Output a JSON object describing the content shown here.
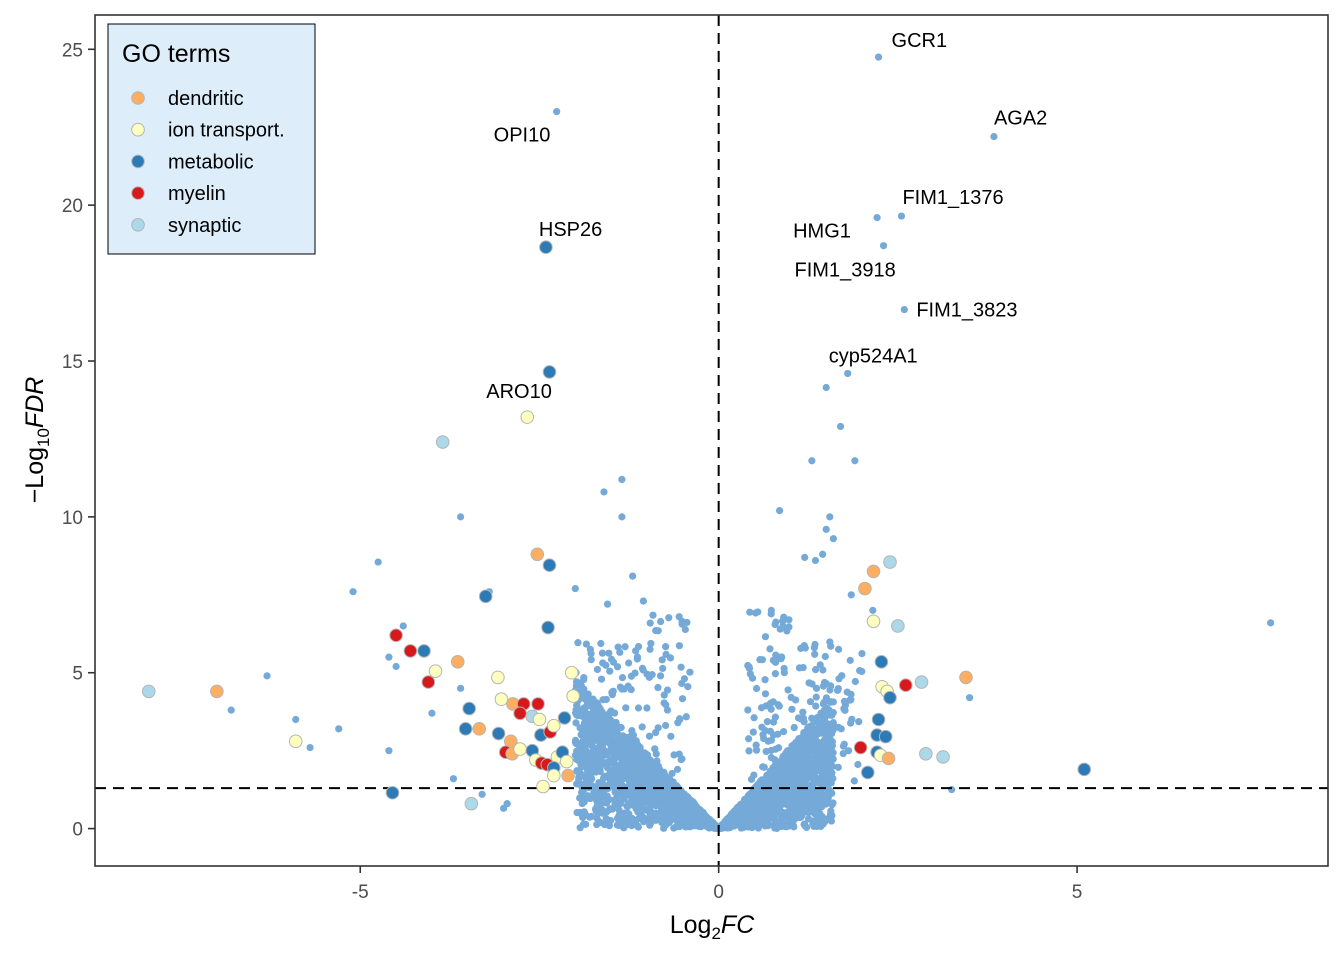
{
  "chart_data": {
    "type": "scatter",
    "subtype": "volcano",
    "title": "",
    "xlabel": "Log2FC",
    "xlabel_parts": {
      "base": "Log",
      "sub": "2",
      "italic": "FC"
    },
    "ylabel": "-Log10FDR",
    "ylabel_parts": {
      "prefix": "−",
      "base": "Log",
      "sub": "10",
      "italic": "FDR"
    },
    "xlim": [
      -8.7,
      8.5
    ],
    "ylim": [
      -1.2,
      26.1
    ],
    "x_ticks": [
      -5,
      0,
      5
    ],
    "x_tick_labels": [
      "-5",
      "0",
      "5"
    ],
    "y_ticks": [
      0,
      5,
      10,
      15,
      20,
      25
    ],
    "y_tick_labels": [
      "0",
      "5",
      "10",
      "15",
      "20",
      "25"
    ],
    "grid": false,
    "reference_lines": {
      "vertical_x": 0,
      "horizontal_y": 1.3,
      "style": "dashed"
    },
    "background_color": "#74a9d8",
    "legend": {
      "title": "GO terms",
      "placement": "top-left",
      "background": "#ddeefa",
      "entries": [
        {
          "name": "dendritic",
          "color": "#fdae61"
        },
        {
          "name": "ion transport.",
          "color": "#ffffbf"
        },
        {
          "name": "metabolic",
          "color": "#2c7bb6"
        },
        {
          "name": "myelin",
          "color": "#d7191c"
        },
        {
          "name": "synaptic",
          "color": "#abd9e9"
        }
      ]
    },
    "labeled_genes": [
      {
        "label": "GCR1",
        "x": 2.23,
        "y": 24.75,
        "group": "background",
        "label_pos": "above-right"
      },
      {
        "label": "AGA2",
        "x": 3.84,
        "y": 22.2,
        "group": "background",
        "label_pos": "above-right"
      },
      {
        "label": "FIM1_1376",
        "x": 2.55,
        "y": 19.65,
        "group": "background",
        "label_pos": "above"
      },
      {
        "label": "HMG1",
        "x": 2.21,
        "y": 19.6,
        "group": "background",
        "label_pos": "below-left"
      },
      {
        "label": "FIM1_3918",
        "x": 2.3,
        "y": 18.7,
        "group": "background",
        "label_pos": "below-left"
      },
      {
        "label": "FIM1_3823",
        "x": 2.59,
        "y": 16.65,
        "group": "background",
        "label_pos": "right"
      },
      {
        "label": "cyp524A1",
        "x": 1.8,
        "y": 14.6,
        "group": "background",
        "label_pos": "above"
      },
      {
        "label": "OPI10",
        "x": -2.26,
        "y": 23.0,
        "group": "background",
        "label_pos": "below-left"
      },
      {
        "label": "HSP26",
        "x": -2.41,
        "y": 18.65,
        "group": "metabolic",
        "label_pos": "above"
      },
      {
        "label": "ARO10",
        "x": -2.67,
        "y": 13.2,
        "group": "ion transport.",
        "label_pos": "above-left"
      }
    ],
    "go_points": [
      {
        "group": "synaptic",
        "x": -3.85,
        "y": 12.4
      },
      {
        "group": "metabolic",
        "x": -2.36,
        "y": 14.65
      },
      {
        "group": "dendritic",
        "x": -2.53,
        "y": 8.8
      },
      {
        "group": "metabolic",
        "x": -2.36,
        "y": 8.45
      },
      {
        "group": "metabolic",
        "x": -3.25,
        "y": 7.45
      },
      {
        "group": "metabolic",
        "x": -2.38,
        "y": 6.45
      },
      {
        "group": "myelin",
        "x": -4.5,
        "y": 6.2
      },
      {
        "group": "myelin",
        "x": -4.3,
        "y": 5.7
      },
      {
        "group": "metabolic",
        "x": -4.11,
        "y": 5.7
      },
      {
        "group": "dendritic",
        "x": -3.64,
        "y": 5.35
      },
      {
        "group": "ion transport.",
        "x": -3.95,
        "y": 5.05
      },
      {
        "group": "myelin",
        "x": -4.05,
        "y": 4.7
      },
      {
        "group": "ion transport.",
        "x": -3.08,
        "y": 4.85
      },
      {
        "group": "ion transport.",
        "x": -2.05,
        "y": 5.0
      },
      {
        "group": "ion transport.",
        "x": -2.03,
        "y": 4.25
      },
      {
        "group": "synaptic",
        "x": -7.95,
        "y": 4.4
      },
      {
        "group": "dendritic",
        "x": -7.0,
        "y": 4.4
      },
      {
        "group": "ion transport.",
        "x": -5.9,
        "y": 2.8
      },
      {
        "group": "metabolic",
        "x": -4.55,
        "y": 1.15
      },
      {
        "group": "synaptic",
        "x": -3.45,
        "y": 0.8
      },
      {
        "group": "ion transport.",
        "x": -3.03,
        "y": 4.15
      },
      {
        "group": "dendritic",
        "x": -2.87,
        "y": 4.0
      },
      {
        "group": "myelin",
        "x": -2.72,
        "y": 4.0
      },
      {
        "group": "myelin",
        "x": -2.52,
        "y": 4.0
      },
      {
        "group": "myelin",
        "x": -2.77,
        "y": 3.7
      },
      {
        "group": "synaptic",
        "x": -2.6,
        "y": 3.6
      },
      {
        "group": "ion transport.",
        "x": -2.5,
        "y": 3.5
      },
      {
        "group": "metabolic",
        "x": -2.15,
        "y": 3.55
      },
      {
        "group": "metabolic",
        "x": -3.48,
        "y": 3.85
      },
      {
        "group": "metabolic",
        "x": -3.53,
        "y": 3.2
      },
      {
        "group": "dendritic",
        "x": -3.34,
        "y": 3.2
      },
      {
        "group": "metabolic",
        "x": -3.07,
        "y": 3.05
      },
      {
        "group": "metabolic",
        "x": -2.48,
        "y": 3.0
      },
      {
        "group": "myelin",
        "x": -2.35,
        "y": 3.1
      },
      {
        "group": "ion transport.",
        "x": -2.3,
        "y": 3.3
      },
      {
        "group": "dendritic",
        "x": -2.9,
        "y": 2.8
      },
      {
        "group": "myelin",
        "x": -2.97,
        "y": 2.45
      },
      {
        "group": "dendritic",
        "x": -2.88,
        "y": 2.4
      },
      {
        "group": "ion transport.",
        "x": -2.77,
        "y": 2.55
      },
      {
        "group": "metabolic",
        "x": -2.6,
        "y": 2.5
      },
      {
        "group": "ion transport.",
        "x": -2.55,
        "y": 2.2
      },
      {
        "group": "myelin",
        "x": -2.47,
        "y": 2.1
      },
      {
        "group": "myelin",
        "x": -2.39,
        "y": 2.05
      },
      {
        "group": "ion transport.",
        "x": -2.25,
        "y": 2.3
      },
      {
        "group": "metabolic",
        "x": -2.18,
        "y": 2.45
      },
      {
        "group": "ion transport.",
        "x": -2.12,
        "y": 2.15
      },
      {
        "group": "metabolic",
        "x": -2.3,
        "y": 1.95
      },
      {
        "group": "dendritic",
        "x": -2.1,
        "y": 1.7
      },
      {
        "group": "ion transport.",
        "x": -2.3,
        "y": 1.7
      },
      {
        "group": "ion transport.",
        "x": -2.45,
        "y": 1.35
      },
      {
        "group": "synaptic",
        "x": 2.39,
        "y": 8.55
      },
      {
        "group": "dendritic",
        "x": 2.16,
        "y": 8.25
      },
      {
        "group": "dendritic",
        "x": 2.04,
        "y": 7.7
      },
      {
        "group": "ion transport.",
        "x": 2.16,
        "y": 6.65
      },
      {
        "group": "synaptic",
        "x": 2.5,
        "y": 6.5
      },
      {
        "group": "metabolic",
        "x": 2.27,
        "y": 5.35
      },
      {
        "group": "ion transport.",
        "x": 2.28,
        "y": 4.55
      },
      {
        "group": "ion transport.",
        "x": 2.35,
        "y": 4.4
      },
      {
        "group": "metabolic",
        "x": 2.39,
        "y": 4.2
      },
      {
        "group": "myelin",
        "x": 2.61,
        "y": 4.6
      },
      {
        "group": "synaptic",
        "x": 2.83,
        "y": 4.7
      },
      {
        "group": "dendritic",
        "x": 3.45,
        "y": 4.85
      },
      {
        "group": "metabolic",
        "x": 2.23,
        "y": 3.5
      },
      {
        "group": "metabolic",
        "x": 2.21,
        "y": 3.0
      },
      {
        "group": "metabolic",
        "x": 2.33,
        "y": 2.95
      },
      {
        "group": "myelin",
        "x": 1.98,
        "y": 2.6
      },
      {
        "group": "metabolic",
        "x": 2.21,
        "y": 2.45
      },
      {
        "group": "ion transport.",
        "x": 2.26,
        "y": 2.35
      },
      {
        "group": "dendritic",
        "x": 2.37,
        "y": 2.25
      },
      {
        "group": "synaptic",
        "x": 2.89,
        "y": 2.4
      },
      {
        "group": "synaptic",
        "x": 3.13,
        "y": 2.3
      },
      {
        "group": "metabolic",
        "x": 2.08,
        "y": 1.8
      },
      {
        "group": "metabolic",
        "x": 5.1,
        "y": 1.9
      }
    ],
    "background_outliers": [
      {
        "x": -3.6,
        "y": 10.0
      },
      {
        "x": -1.6,
        "y": 10.8
      },
      {
        "x": -1.35,
        "y": 11.2
      },
      {
        "x": -1.35,
        "y": 10.0
      },
      {
        "x": -4.75,
        "y": 8.55
      },
      {
        "x": -5.1,
        "y": 7.6
      },
      {
        "x": -2.0,
        "y": 7.7
      },
      {
        "x": -1.55,
        "y": 7.2
      },
      {
        "x": -1.2,
        "y": 8.1
      },
      {
        "x": -1.05,
        "y": 7.3
      },
      {
        "x": -3.2,
        "y": 7.6
      },
      {
        "x": -4.4,
        "y": 6.5
      },
      {
        "x": -4.6,
        "y": 5.5
      },
      {
        "x": -4.5,
        "y": 5.2
      },
      {
        "x": -6.3,
        "y": 4.9
      },
      {
        "x": -6.8,
        "y": 3.8
      },
      {
        "x": -5.9,
        "y": 3.5
      },
      {
        "x": -5.7,
        "y": 2.6
      },
      {
        "x": -5.3,
        "y": 3.2
      },
      {
        "x": -4.6,
        "y": 2.5
      },
      {
        "x": -4.0,
        "y": 3.7
      },
      {
        "x": -3.6,
        "y": 4.5
      },
      {
        "x": -3.7,
        "y": 1.6
      },
      {
        "x": -3.3,
        "y": 1.1
      },
      {
        "x": -3.0,
        "y": 0.65
      },
      {
        "x": -2.95,
        "y": 0.8
      },
      {
        "x": 1.3,
        "y": 11.8
      },
      {
        "x": 1.5,
        "y": 14.15
      },
      {
        "x": 1.7,
        "y": 12.9
      },
      {
        "x": 1.9,
        "y": 11.8
      },
      {
        "x": 1.55,
        "y": 10.0
      },
      {
        "x": 1.6,
        "y": 9.3
      },
      {
        "x": 1.5,
        "y": 9.6
      },
      {
        "x": 1.45,
        "y": 8.8
      },
      {
        "x": 1.35,
        "y": 8.6
      },
      {
        "x": 1.2,
        "y": 8.7
      },
      {
        "x": 1.85,
        "y": 7.5
      },
      {
        "x": 2.15,
        "y": 7.0
      },
      {
        "x": 3.5,
        "y": 4.2
      },
      {
        "x": 3.25,
        "y": 1.25
      },
      {
        "x": 7.7,
        "y": 6.6
      },
      {
        "x": 0.85,
        "y": 10.2
      },
      {
        "x": 1.55,
        "y": 2.9
      }
    ]
  }
}
